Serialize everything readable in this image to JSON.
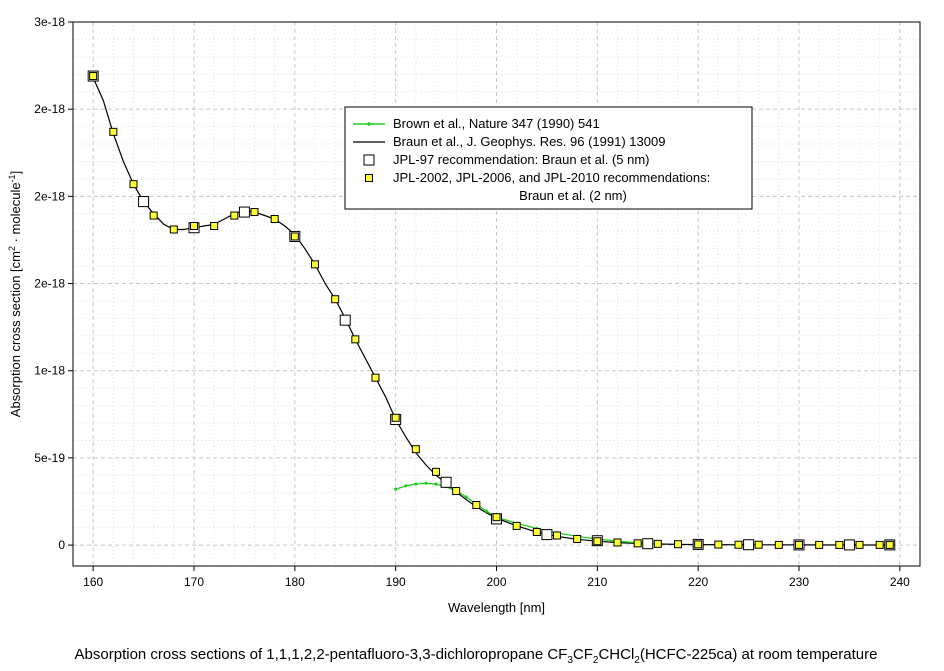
{
  "chart_data": {
    "type": "line",
    "xlabel": "Wavelength [nm]",
    "ylabel_parts": [
      "Absorption cross section [cm",
      "2",
      " · molecule",
      "-1",
      "]"
    ],
    "xlim": [
      158,
      242
    ],
    "ylim": [
      -1.2e-19,
      3e-18
    ],
    "x_ticks": [
      160,
      170,
      180,
      190,
      200,
      210,
      220,
      230,
      240
    ],
    "y_ticks": [
      {
        "value": 0,
        "label": "0"
      },
      {
        "value": 5e-19,
        "label": "5e-19"
      },
      {
        "value": 1e-18,
        "label": "1e-18"
      },
      {
        "value": 1.5e-18,
        "label": "2e-18"
      },
      {
        "value": 2e-18,
        "label": "2e-18"
      },
      {
        "value": 2.5e-18,
        "label": "2e-18"
      },
      {
        "value": 3e-18,
        "label": "3e-18"
      }
    ],
    "grid": true,
    "legend_position": "top-right",
    "series": [
      {
        "name": "Brown et al., Nature 347 (1990) 541",
        "style": "line-dot",
        "color": "#22cc22",
        "x": [
          190,
          191,
          192,
          193,
          194,
          195,
          196,
          197,
          198,
          199,
          200,
          202,
          204,
          206,
          208,
          210,
          212,
          214,
          216
        ],
        "y": [
          3.2e-19,
          3.4e-19,
          3.5e-19,
          3.55e-19,
          3.5e-19,
          3.35e-19,
          3.1e-19,
          2.75e-19,
          2.35e-19,
          1.95e-19,
          1.6e-19,
          1.25e-19,
          9.5e-20,
          7e-20,
          5e-20,
          3.5e-20,
          2.2e-20,
          1.3e-20,
          7e-21
        ]
      },
      {
        "name": "Braun et al., J. Geophys. Res. 96 (1991) 13009",
        "style": "line",
        "color": "#000000",
        "x": [
          160,
          161,
          162,
          163,
          164,
          165,
          166,
          167,
          168,
          169,
          170,
          171,
          172,
          173,
          174,
          175,
          176,
          177,
          178,
          179,
          180,
          181,
          182,
          183,
          184,
          185,
          186,
          187,
          188,
          189,
          190,
          191,
          192,
          193,
          194,
          195,
          196,
          197,
          198,
          199,
          200,
          202,
          204,
          206,
          208,
          210,
          212,
          214,
          216,
          218,
          220,
          225,
          230,
          235,
          239
        ],
        "y": [
          2.68e-18,
          2.55e-18,
          2.36e-18,
          2.2e-18,
          2.07e-18,
          1.97e-18,
          1.9e-18,
          1.84e-18,
          1.81e-18,
          1.81e-18,
          1.82e-18,
          1.83e-18,
          1.84e-18,
          1.87e-18,
          1.9e-18,
          1.92e-18,
          1.91e-18,
          1.89e-18,
          1.87e-18,
          1.83e-18,
          1.78e-18,
          1.7e-18,
          1.61e-18,
          1.5e-18,
          1.41e-18,
          1.3e-18,
          1.18e-18,
          1.07e-18,
          9.6e-19,
          8.5e-19,
          7.2e-19,
          6.2e-19,
          5.3e-19,
          4.6e-19,
          4e-19,
          3.55e-19,
          3.05e-19,
          2.6e-19,
          2.2e-19,
          1.85e-19,
          1.55e-19,
          1.1e-19,
          7.5e-20,
          5e-20,
          3.3e-20,
          2.2e-20,
          1.4e-20,
          9e-21,
          6e-21,
          4e-21,
          3e-21,
          1.5e-21,
          1e-21,
          5e-22,
          3e-22
        ]
      },
      {
        "name": "JPL-97 recommendation: Braun et al. (5 nm)",
        "style": "open-square",
        "color": "#000000",
        "x": [
          160,
          165,
          170,
          175,
          180,
          185,
          190,
          195,
          200,
          205,
          210,
          215,
          220,
          225,
          230,
          235,
          239
        ],
        "y": [
          2.69e-18,
          1.97e-18,
          1.82e-18,
          1.91e-18,
          1.77e-18,
          1.29e-18,
          7.2e-19,
          3.6e-19,
          1.5e-19,
          6e-20,
          2.5e-20,
          8e-21,
          4e-21,
          2e-21,
          1e-21,
          1e-21,
          1e-21
        ]
      },
      {
        "name_lines": [
          "JPL-2002, JPL-2006, and JPL-2010 recommendations:",
          "Braun et al. (2 nm)"
        ],
        "style": "filled-square",
        "color": "#ffff33",
        "x": [
          160,
          162,
          164,
          166,
          168,
          170,
          172,
          174,
          176,
          178,
          180,
          182,
          184,
          186,
          188,
          190,
          192,
          194,
          196,
          198,
          200,
          202,
          204,
          206,
          208,
          210,
          212,
          214,
          216,
          218,
          220,
          222,
          224,
          226,
          228,
          230,
          232,
          234,
          236,
          238,
          239
        ],
        "y": [
          2.69e-18,
          2.37e-18,
          2.07e-18,
          1.89e-18,
          1.81e-18,
          1.83e-18,
          1.83e-18,
          1.89e-18,
          1.91e-18,
          1.87e-18,
          1.77e-18,
          1.61e-18,
          1.41e-18,
          1.18e-18,
          9.6e-19,
          7.3e-19,
          5.5e-19,
          4.2e-19,
          3.1e-19,
          2.3e-19,
          1.6e-19,
          1.1e-19,
          7.5e-20,
          5.5e-20,
          3.5e-20,
          2.2e-20,
          1.5e-20,
          1e-20,
          7e-21,
          5e-21,
          4e-21,
          3e-21,
          2e-21,
          2e-21,
          1e-21,
          1e-21,
          1e-21,
          1e-21,
          1e-21,
          1e-21,
          1e-21
        ]
      }
    ],
    "caption_parts": [
      {
        "t": "Absorption cross sections of 1,1,1,2,2-pentafluoro-3,3-dichloropropane CF",
        "s": false
      },
      {
        "t": "3",
        "s": true
      },
      {
        "t": "CF",
        "s": false
      },
      {
        "t": "2",
        "s": true
      },
      {
        "t": "CHCl",
        "s": false
      },
      {
        "t": "2",
        "s": true
      },
      {
        "t": "(HCFC-225ca) at room temperature",
        "s": false
      }
    ]
  }
}
